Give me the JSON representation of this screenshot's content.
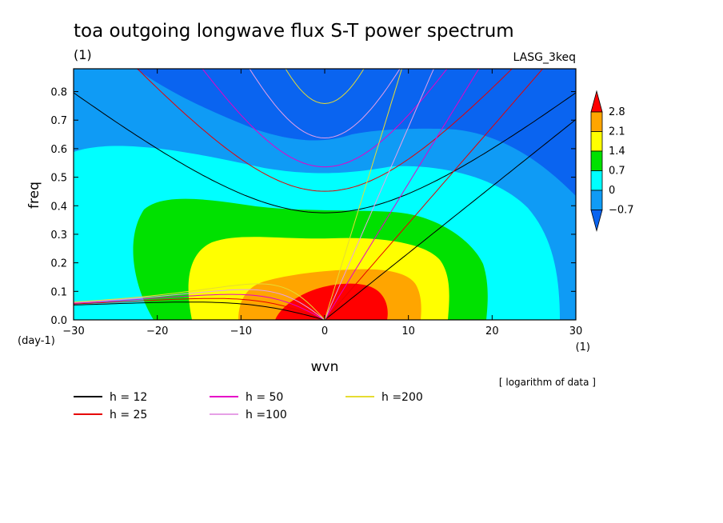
{
  "chart_data": {
    "type": "heatmap",
    "title": "toa outgoing longwave flux S-T power spectrum",
    "subtitle_left": "(1)",
    "subtitle_right": "LASG_3keq",
    "xlabel": "wvn",
    "ylabel": "freq",
    "x_unit": "(1)",
    "y_unit": "(day-1)",
    "note": "[ logarithm of data ]",
    "xlim": [
      -30,
      30
    ],
    "ylim": [
      0,
      0.88
    ],
    "x_ticks": [
      "−30",
      "−20",
      "−10",
      "0",
      "10",
      "20",
      "30"
    ],
    "x_tick_values": [
      -30,
      -20,
      -10,
      0,
      10,
      20,
      30
    ],
    "y_ticks": [
      "0.0",
      "0.1",
      "0.2",
      "0.3",
      "0.4",
      "0.5",
      "0.6",
      "0.7",
      "0.8"
    ],
    "y_tick_values": [
      0,
      0.1,
      0.2,
      0.3,
      0.4,
      0.5,
      0.6,
      0.7,
      0.8
    ],
    "colorbar": {
      "levels": [
        -0.7,
        0,
        0.7,
        1.4,
        2.1,
        2.8
      ],
      "labels": [
        "−0.7",
        "0",
        "0.7",
        "1.4",
        "2.1",
        "2.8"
      ],
      "colors": [
        "#0a64f0",
        "#0f9bf5",
        "#00ffff",
        "#00e100",
        "#ffff00",
        "#ffa500",
        "#ff0000"
      ]
    },
    "dispersion_curves": [
      {
        "name": "h = 12",
        "h": 12,
        "color": "#000000"
      },
      {
        "name": "h = 25",
        "h": 25,
        "color": "#e60000"
      },
      {
        "name": "h = 50",
        "h": 50,
        "color": "#e600c8"
      },
      {
        "name": "h =100",
        "h": 100,
        "color": "#e6a0e6"
      },
      {
        "name": "h =200",
        "h": 200,
        "color": "#e6dc32"
      }
    ],
    "legend_position": "bottom"
  }
}
